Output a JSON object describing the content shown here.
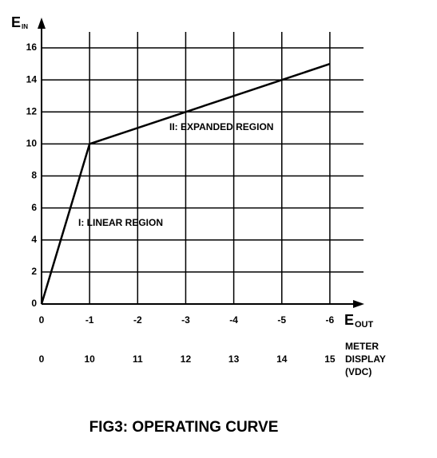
{
  "chart_data": {
    "type": "line",
    "title": "FIG3:  OPERATING  CURVE",
    "ylabel": "E",
    "ylabel_sub": "IN",
    "xlabel": "E",
    "xlabel_sub": "OUT",
    "x": [
      0,
      -1,
      -3,
      -5,
      -6
    ],
    "series": [
      {
        "color": "#000000",
        "values": [
          0,
          10,
          12,
          14,
          15
        ]
      }
    ],
    "xlim": [
      0,
      -6.7
    ],
    "ylim": [
      0,
      17
    ],
    "xticks": [
      0,
      -1,
      -2,
      -3,
      -4,
      -5,
      -6
    ],
    "yticks": [
      0,
      2,
      4,
      6,
      8,
      10,
      12,
      14,
      16
    ],
    "grid": true,
    "meter_display": {
      "label": [
        "METER",
        "DISPLAY",
        "(VDC)"
      ],
      "values": [
        0,
        10,
        11,
        12,
        13,
        14,
        15
      ]
    },
    "annotations": [
      "I: LINEAR REGION",
      "II: EXPANDED REGION"
    ]
  }
}
